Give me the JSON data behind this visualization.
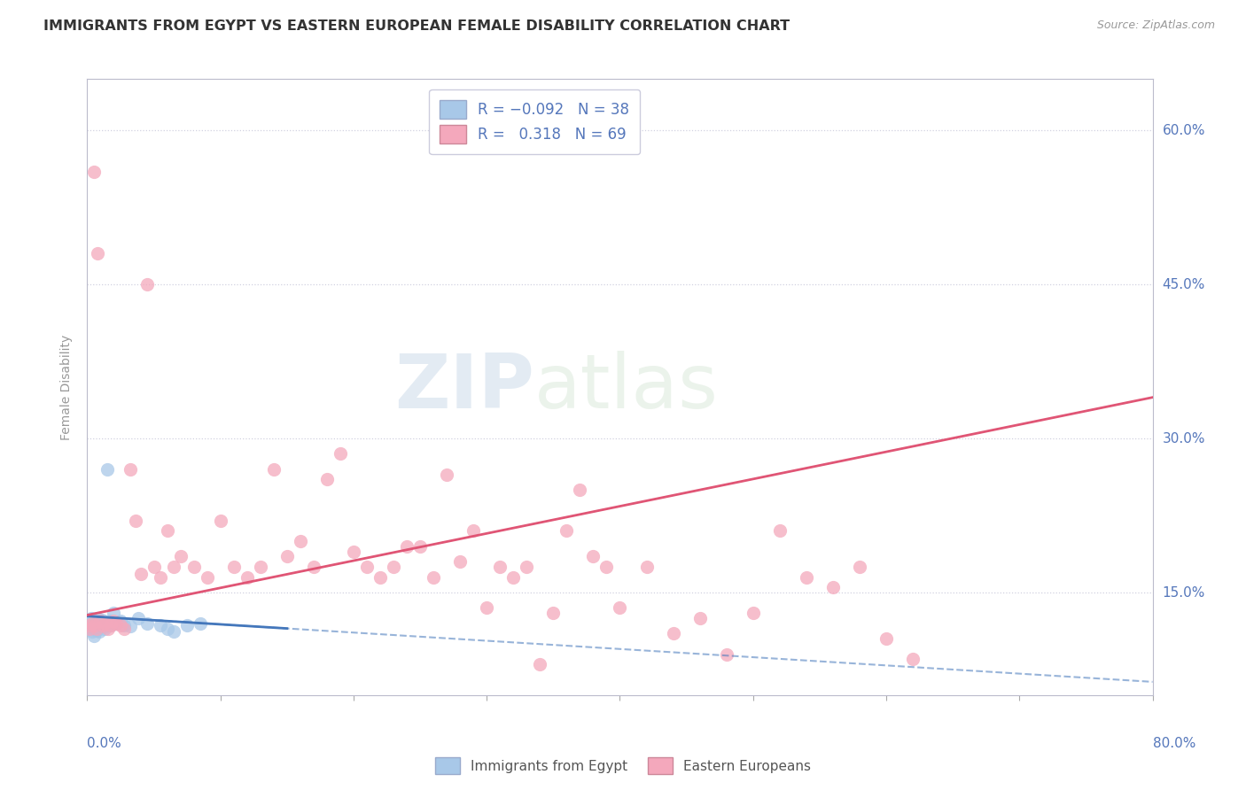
{
  "title": "IMMIGRANTS FROM EGYPT VS EASTERN EUROPEAN FEMALE DISABILITY CORRELATION CHART",
  "source": "Source: ZipAtlas.com",
  "ylabel": "Female Disability",
  "right_yticks": [
    "60.0%",
    "45.0%",
    "30.0%",
    "15.0%"
  ],
  "right_ytick_vals": [
    0.6,
    0.45,
    0.3,
    0.15
  ],
  "blue_color": "#a8c8e8",
  "pink_color": "#f4a8bc",
  "blue_line_color": "#4477bb",
  "pink_line_color": "#e05575",
  "text_color": "#5577bb",
  "watermark_zip": "ZIP",
  "watermark_atlas": "atlas",
  "egypt_x": [
    0.001,
    0.002,
    0.003,
    0.003,
    0.004,
    0.005,
    0.005,
    0.006,
    0.006,
    0.007,
    0.007,
    0.008,
    0.008,
    0.009,
    0.009,
    0.01,
    0.01,
    0.011,
    0.011,
    0.012,
    0.013,
    0.014,
    0.015,
    0.016,
    0.017,
    0.018,
    0.02,
    0.022,
    0.025,
    0.028,
    0.032,
    0.038,
    0.045,
    0.055,
    0.06,
    0.065,
    0.075,
    0.085
  ],
  "egypt_y": [
    0.12,
    0.118,
    0.115,
    0.125,
    0.112,
    0.108,
    0.122,
    0.119,
    0.115,
    0.121,
    0.113,
    0.118,
    0.125,
    0.112,
    0.12,
    0.116,
    0.122,
    0.118,
    0.123,
    0.12,
    0.115,
    0.117,
    0.27,
    0.119,
    0.122,
    0.118,
    0.13,
    0.12,
    0.122,
    0.118,
    0.117,
    0.125,
    0.12,
    0.118,
    0.115,
    0.112,
    0.118,
    0.12
  ],
  "eastern_x": [
    0.001,
    0.002,
    0.004,
    0.005,
    0.006,
    0.007,
    0.008,
    0.01,
    0.012,
    0.014,
    0.016,
    0.018,
    0.02,
    0.022,
    0.025,
    0.028,
    0.032,
    0.036,
    0.04,
    0.045,
    0.05,
    0.055,
    0.06,
    0.065,
    0.07,
    0.08,
    0.09,
    0.1,
    0.11,
    0.12,
    0.13,
    0.14,
    0.15,
    0.16,
    0.17,
    0.18,
    0.19,
    0.2,
    0.21,
    0.22,
    0.23,
    0.24,
    0.25,
    0.26,
    0.27,
    0.28,
    0.29,
    0.3,
    0.31,
    0.32,
    0.33,
    0.34,
    0.35,
    0.36,
    0.37,
    0.38,
    0.39,
    0.4,
    0.42,
    0.44,
    0.46,
    0.48,
    0.5,
    0.52,
    0.54,
    0.56,
    0.58,
    0.6,
    0.62
  ],
  "eastern_y": [
    0.118,
    0.115,
    0.12,
    0.56,
    0.118,
    0.115,
    0.48,
    0.122,
    0.118,
    0.12,
    0.115,
    0.118,
    0.122,
    0.12,
    0.118,
    0.115,
    0.27,
    0.22,
    0.168,
    0.45,
    0.175,
    0.165,
    0.21,
    0.175,
    0.185,
    0.175,
    0.165,
    0.22,
    0.175,
    0.165,
    0.175,
    0.27,
    0.185,
    0.2,
    0.175,
    0.26,
    0.285,
    0.19,
    0.175,
    0.165,
    0.175,
    0.195,
    0.195,
    0.165,
    0.265,
    0.18,
    0.21,
    0.135,
    0.175,
    0.165,
    0.175,
    0.08,
    0.13,
    0.21,
    0.25,
    0.185,
    0.175,
    0.135,
    0.175,
    0.11,
    0.125,
    0.09,
    0.13,
    0.21,
    0.165,
    0.155,
    0.175,
    0.105,
    0.085
  ],
  "ylim_min": 0.05,
  "ylim_max": 0.65,
  "xlim_min": 0.0,
  "xlim_max": 0.8
}
